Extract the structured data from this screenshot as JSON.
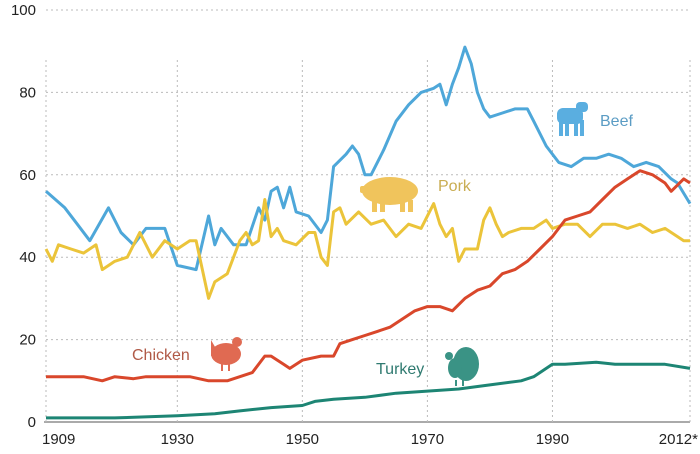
{
  "chart_data": {
    "type": "line",
    "title": "",
    "xlabel": "",
    "ylabel": "",
    "xlim": [
      1909,
      2012
    ],
    "ylim": [
      0,
      100
    ],
    "grid": true,
    "y_ticks": [
      0,
      20,
      40,
      60,
      80,
      100
    ],
    "x_ticks": [
      {
        "value": 1909,
        "label": "1909"
      },
      {
        "value": 1930,
        "label": "1930"
      },
      {
        "value": 1950,
        "label": "1950"
      },
      {
        "value": 1970,
        "label": "1970"
      },
      {
        "value": 1990,
        "label": "1990"
      },
      {
        "value": 2012,
        "label": "2012*"
      }
    ],
    "series": [
      {
        "name": "Beef",
        "icon": "cow-icon",
        "color": "#4ea7d9",
        "label_color": "#5b9cc4",
        "x": [
          1909,
          1912,
          1914,
          1916,
          1919,
          1921,
          1923,
          1925,
          1928,
          1930,
          1933,
          1935,
          1936,
          1937,
          1939,
          1941,
          1943,
          1944,
          1945,
          1946,
          1947,
          1948,
          1949,
          1951,
          1953,
          1954,
          1955,
          1957,
          1958,
          1959,
          1960,
          1961,
          1963,
          1965,
          1967,
          1969,
          1971,
          1972,
          1973,
          1974,
          1975,
          1976,
          1977,
          1978,
          1979,
          1980,
          1982,
          1984,
          1986,
          1987,
          1989,
          1991,
          1993,
          1995,
          1997,
          1999,
          2001,
          2003,
          2005,
          2007,
          2009,
          2010,
          2012
        ],
        "y": [
          56,
          52,
          48,
          44,
          52,
          46,
          43,
          47,
          47,
          38,
          37,
          50,
          43,
          47,
          43,
          43,
          52,
          49,
          56,
          57,
          52,
          57,
          51,
          50,
          46,
          49,
          62,
          65,
          67,
          65,
          60,
          60,
          66,
          73,
          77,
          80,
          81,
          82,
          77,
          82,
          86,
          91,
          87,
          80,
          76,
          74,
          75,
          76,
          76,
          73,
          67,
          63,
          62,
          64,
          64,
          65,
          64,
          62,
          63,
          62,
          59,
          58,
          53
        ]
      },
      {
        "name": "Pork",
        "icon": "pig-icon",
        "color": "#ebc43a",
        "label_color": "#c9ad52",
        "x": [
          1909,
          1910,
          1911,
          1913,
          1915,
          1917,
          1918,
          1920,
          1922,
          1924,
          1926,
          1928,
          1930,
          1932,
          1933,
          1935,
          1936,
          1938,
          1940,
          1941,
          1942,
          1943,
          1944,
          1945,
          1946,
          1947,
          1949,
          1951,
          1952,
          1953,
          1954,
          1955,
          1956,
          1957,
          1959,
          1961,
          1963,
          1965,
          1967,
          1969,
          1971,
          1972,
          1973,
          1974,
          1975,
          1976,
          1978,
          1979,
          1980,
          1981,
          1982,
          1983,
          1985,
          1987,
          1989,
          1990,
          1992,
          1994,
          1996,
          1998,
          2000,
          2002,
          2004,
          2006,
          2008,
          2010,
          2011,
          2012
        ],
        "y": [
          42,
          39,
          43,
          42,
          41,
          43,
          37,
          39,
          40,
          46,
          40,
          44,
          42,
          44,
          44,
          30,
          34,
          36,
          44,
          46,
          43,
          44,
          54,
          45,
          47,
          44,
          43,
          46,
          46,
          40,
          38,
          51,
          52,
          48,
          51,
          48,
          49,
          45,
          48,
          47,
          53,
          48,
          45,
          47,
          39,
          42,
          42,
          49,
          52,
          48,
          45,
          46,
          47,
          47,
          49,
          47,
          48,
          48,
          45,
          48,
          48,
          47,
          48,
          46,
          47,
          45,
          44,
          44
        ]
      },
      {
        "name": "Chicken",
        "icon": "chicken-icon",
        "color": "#d9472b",
        "label_color": "#c0604a",
        "x": [
          1909,
          1912,
          1915,
          1918,
          1920,
          1923,
          1925,
          1928,
          1930,
          1932,
          1935,
          1938,
          1940,
          1942,
          1944,
          1945,
          1947,
          1948,
          1950,
          1953,
          1955,
          1956,
          1958,
          1960,
          1962,
          1964,
          1966,
          1968,
          1970,
          1972,
          1974,
          1976,
          1978,
          1980,
          1982,
          1984,
          1986,
          1988,
          1990,
          1992,
          1994,
          1996,
          1998,
          2000,
          2002,
          2004,
          2006,
          2008,
          2009,
          2011,
          2012
        ],
        "y": [
          11,
          11,
          11,
          10,
          11,
          10.5,
          11,
          11,
          11,
          11,
          10,
          10,
          11,
          12,
          16,
          16,
          14,
          13,
          15,
          16,
          16,
          19,
          20,
          21,
          22,
          23,
          25,
          27,
          28,
          28,
          27,
          30,
          32,
          33,
          36,
          37,
          39,
          42,
          45,
          49,
          50,
          51,
          54,
          57,
          59,
          61,
          60,
          58,
          56,
          59,
          58
        ]
      },
      {
        "name": "Turkey",
        "icon": "turkey-icon",
        "color": "#1d8574",
        "label_color": "#2f7a70",
        "x": [
          1909,
          1920,
          1930,
          1936,
          1940,
          1945,
          1950,
          1952,
          1955,
          1960,
          1965,
          1970,
          1975,
          1980,
          1985,
          1987,
          1990,
          1992,
          1997,
          2000,
          2005,
          2008,
          2012
        ],
        "y": [
          1,
          1,
          1.5,
          2,
          2.7,
          3.5,
          4,
          5,
          5.5,
          6,
          7,
          7.5,
          8,
          9,
          10,
          11,
          14,
          14,
          14.5,
          14,
          14,
          14,
          13
        ]
      }
    ]
  }
}
